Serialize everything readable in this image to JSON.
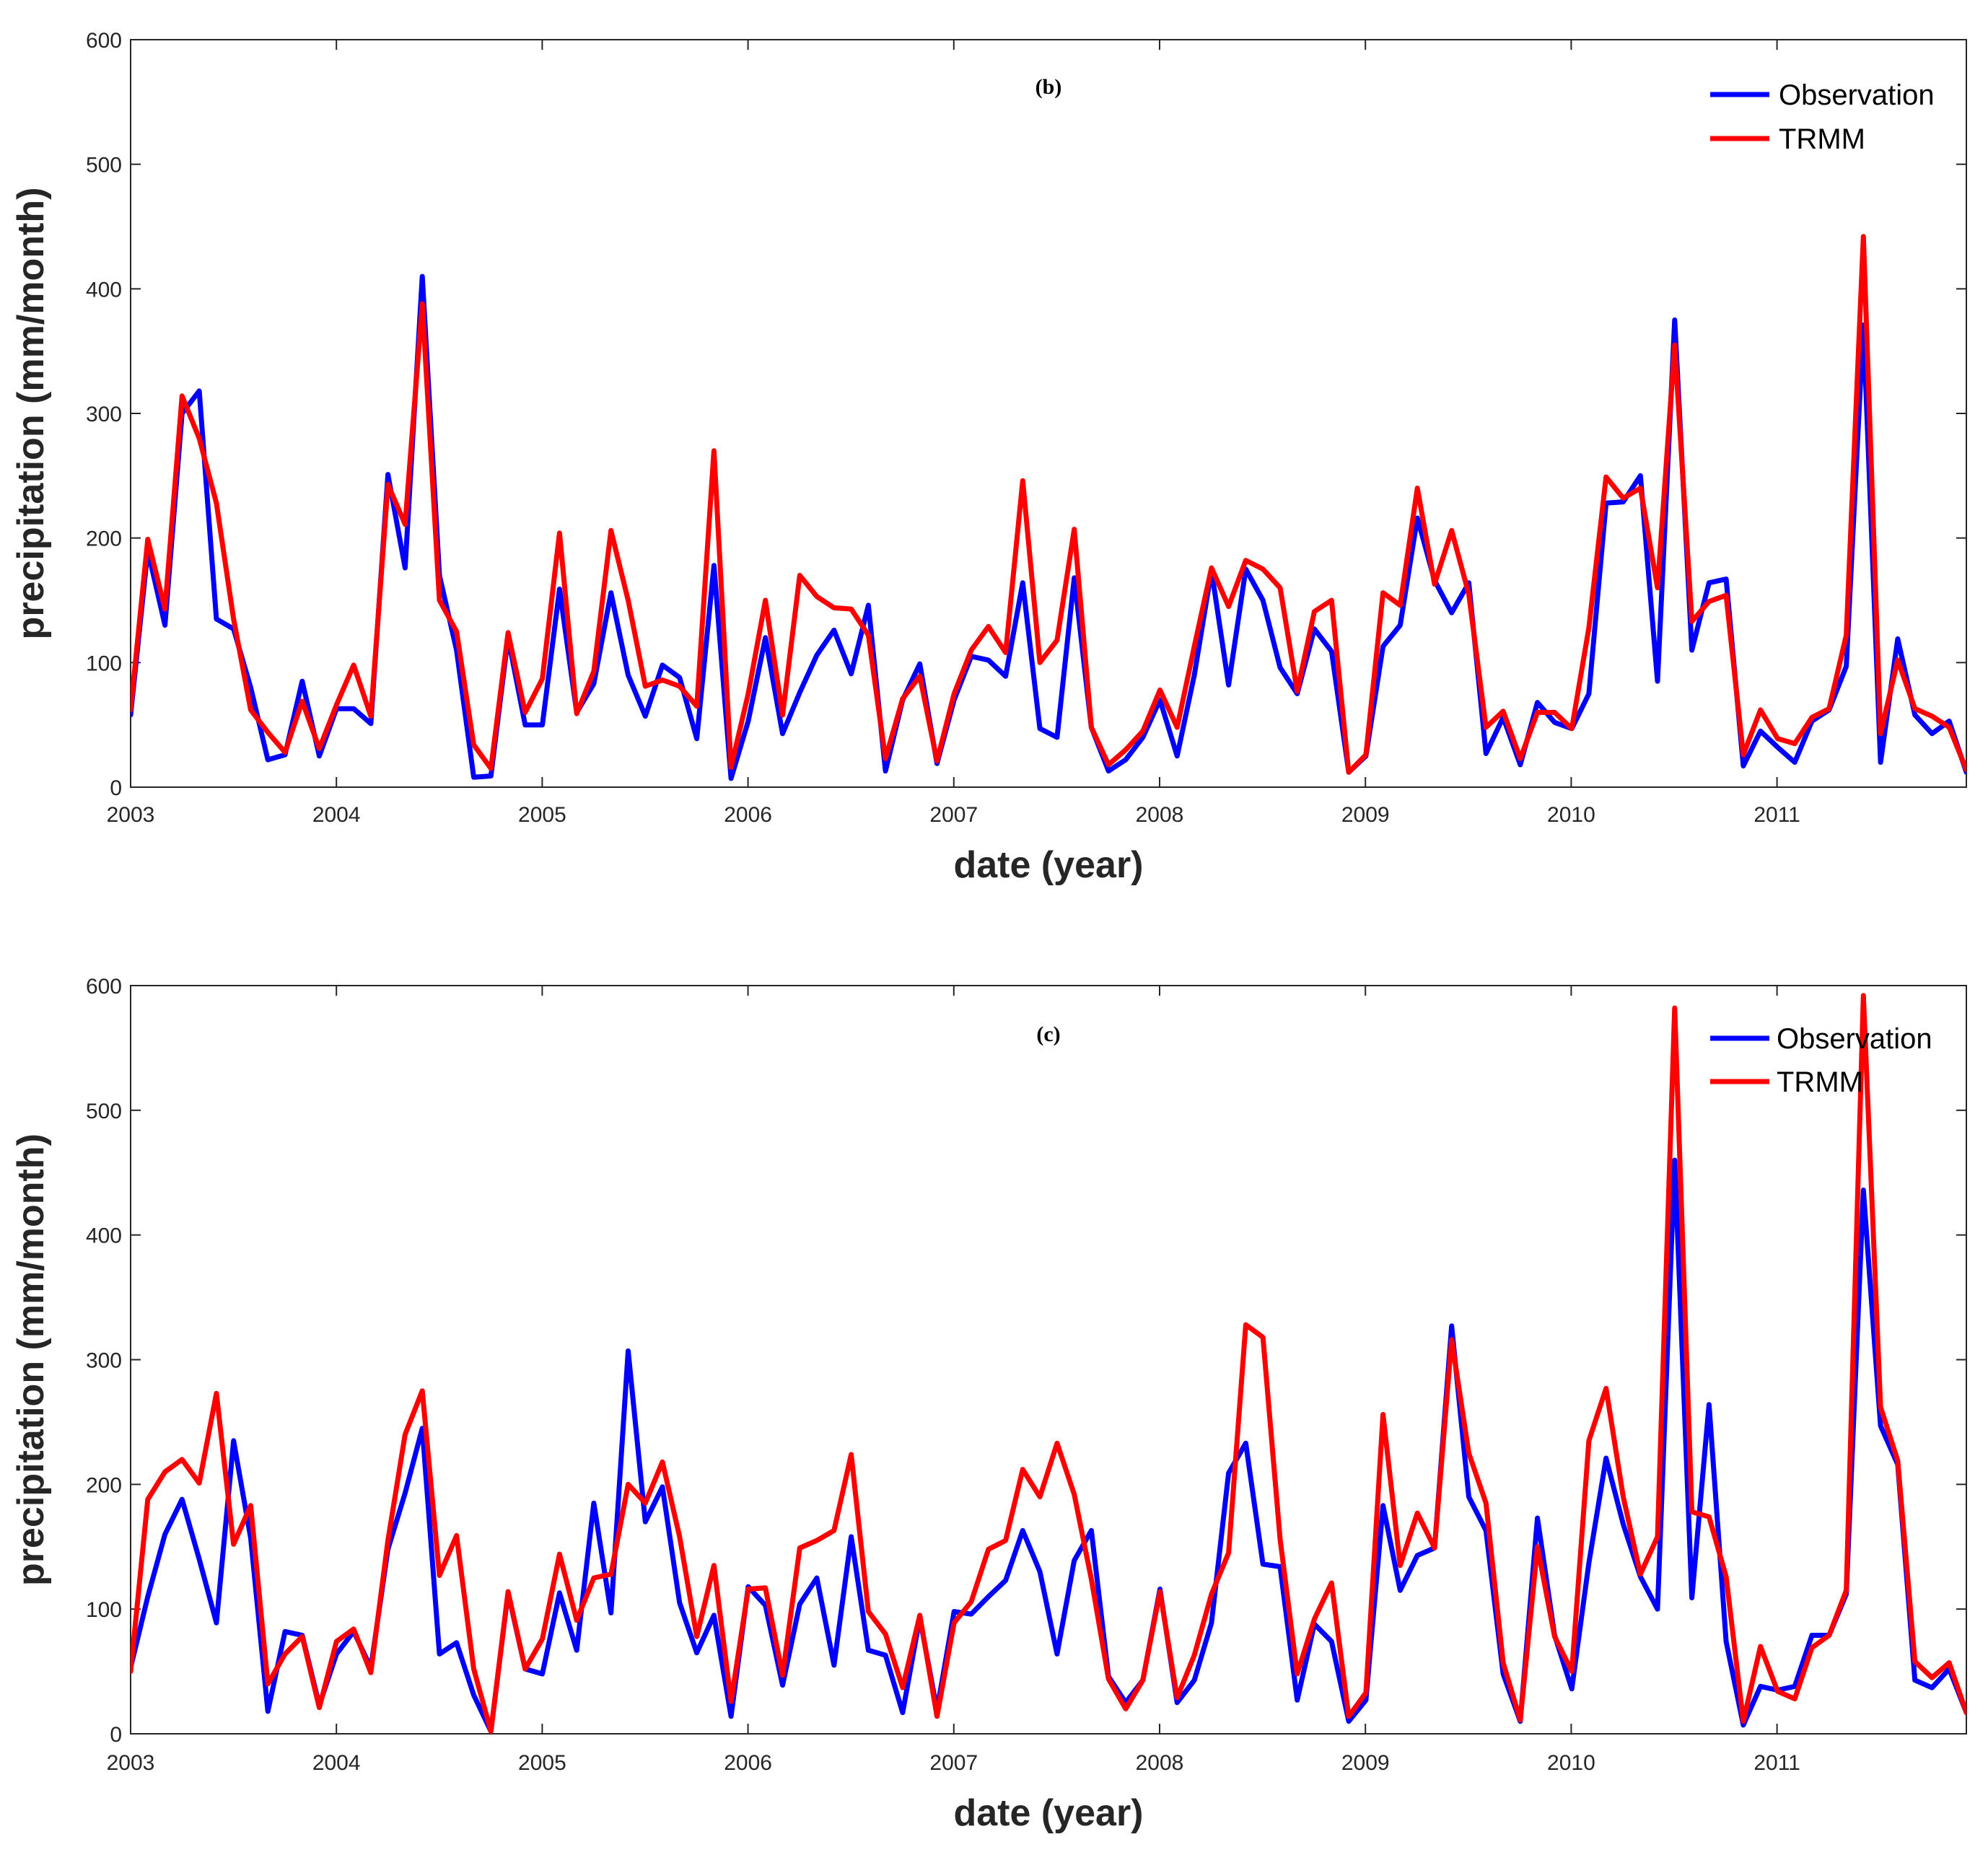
{
  "chart_data": [
    {
      "type": "line",
      "panel_label": "(b)",
      "xlabel": "date (year)",
      "ylabel": "precipitation (mm/month)",
      "ylim": [
        0,
        600
      ],
      "yticks": [
        "0",
        "100",
        "200",
        "300",
        "400",
        "500",
        "600"
      ],
      "xlim": [
        2003,
        2011.92
      ],
      "xticks": [
        "2003",
        "2004",
        "2005",
        "2006",
        "2007",
        "2008",
        "2009",
        "2010",
        "2011"
      ],
      "legend": "top-right",
      "series": [
        {
          "name": "Observation",
          "color": "#0000ff",
          "values": [
            58,
            190,
            130,
            300,
            318,
            135,
            127,
            80,
            22,
            26,
            85,
            25,
            63,
            63,
            51,
            251,
            176,
            410,
            170,
            110,
            8,
            9,
            120,
            50,
            50,
            159,
            60,
            83,
            156,
            90,
            57,
            98,
            88,
            39,
            178,
            7,
            53,
            120,
            43,
            76,
            106,
            126,
            91,
            146,
            13,
            70,
            99,
            19,
            70,
            105,
            102,
            89,
            164,
            47,
            40,
            168,
            48,
            13,
            22,
            40,
            70,
            25,
            90,
            174,
            82,
            175,
            150,
            96,
            75,
            127,
            109,
            12,
            25,
            113,
            130,
            216,
            166,
            140,
            164,
            27,
            56,
            18,
            68,
            52,
            47,
            75,
            228,
            229,
            250,
            85,
            375,
            110,
            164,
            167,
            17,
            45,
            32,
            20,
            53,
            62,
            97,
            371,
            20,
            119,
            58,
            43,
            53,
            12
          ]
        },
        {
          "name": "TRMM",
          "color": "#ff0000",
          "values": [
            62,
            199,
            143,
            314,
            280,
            228,
            135,
            62,
            44,
            28,
            69,
            31,
            66,
            98,
            57,
            243,
            211,
            388,
            150,
            125,
            34,
            15,
            124,
            60,
            87,
            204,
            59,
            93,
            206,
            150,
            81,
            86,
            81,
            65,
            270,
            16,
            75,
            150,
            58,
            170,
            153,
            144,
            143,
            122,
            23,
            71,
            89,
            21,
            75,
            110,
            129,
            108,
            246,
            100,
            118,
            207,
            48,
            18,
            30,
            45,
            78,
            48,
            113,
            176,
            145,
            182,
            175,
            160,
            77,
            141,
            150,
            12,
            26,
            156,
            146,
            240,
            163,
            206,
            155,
            48,
            61,
            23,
            60,
            60,
            47,
            128,
            249,
            232,
            240,
            160,
            355,
            133,
            149,
            154,
            26,
            62,
            39,
            35,
            56,
            63,
            122,
            442,
            43,
            102,
            63,
            57,
            48,
            14
          ]
        }
      ]
    },
    {
      "type": "line",
      "panel_label": "(c)",
      "xlabel": "date (year)",
      "ylabel": "precipitation (mm/month)",
      "ylim": [
        0,
        600
      ],
      "yticks": [
        "0",
        "100",
        "200",
        "300",
        "400",
        "500",
        "600"
      ],
      "xlim": [
        2003,
        2011.92
      ],
      "xticks": [
        "2003",
        "2004",
        "2005",
        "2006",
        "2007",
        "2008",
        "2009",
        "2010",
        "2011"
      ],
      "legend": "top-right",
      "series": [
        {
          "name": "Observation",
          "color": "#0000ff",
          "values": [
            53,
            110,
            160,
            188,
            140,
            89,
            235,
            157,
            18,
            82,
            79,
            23,
            64,
            82,
            53,
            148,
            193,
            245,
            64,
            73,
            31,
            2,
            113,
            52,
            48,
            113,
            67,
            185,
            97,
            307,
            170,
            198,
            105,
            65,
            95,
            14,
            118,
            103,
            39,
            104,
            125,
            55,
            158,
            67,
            63,
            17,
            93,
            19,
            98,
            96,
            110,
            123,
            163,
            130,
            64,
            139,
            163,
            46,
            25,
            43,
            116,
            25,
            43,
            89,
            209,
            233,
            136,
            134,
            27,
            88,
            74,
            10,
            27,
            183,
            115,
            143,
            149,
            327,
            190,
            163,
            48,
            10,
            173,
            79,
            36,
            137,
            221,
            168,
            126,
            100,
            460,
            109,
            264,
            74,
            7,
            38,
            35,
            38,
            79,
            79,
            112,
            436,
            247,
            216,
            43,
            37,
            52,
            17
          ]
        },
        {
          "name": "TRMM",
          "color": "#ff0000",
          "values": [
            50,
            188,
            210,
            220,
            201,
            273,
            152,
            183,
            40,
            64,
            78,
            21,
            74,
            84,
            49,
            155,
            240,
            275,
            127,
            159,
            52,
            2,
            114,
            52,
            76,
            144,
            91,
            125,
            128,
            200,
            185,
            218,
            158,
            78,
            135,
            26,
            116,
            117,
            47,
            149,
            155,
            163,
            224,
            98,
            80,
            37,
            95,
            14,
            89,
            106,
            148,
            155,
            212,
            190,
            233,
            192,
            124,
            44,
            20,
            43,
            114,
            29,
            63,
            112,
            145,
            328,
            318,
            156,
            48,
            92,
            121,
            14,
            33,
            256,
            135,
            177,
            149,
            316,
            225,
            185,
            57,
            11,
            150,
            78,
            50,
            235,
            277,
            190,
            128,
            158,
            582,
            178,
            174,
            126,
            10,
            70,
            34,
            28,
            69,
            79,
            115,
            592,
            262,
            219,
            58,
            45,
            57,
            17
          ]
        }
      ]
    }
  ]
}
